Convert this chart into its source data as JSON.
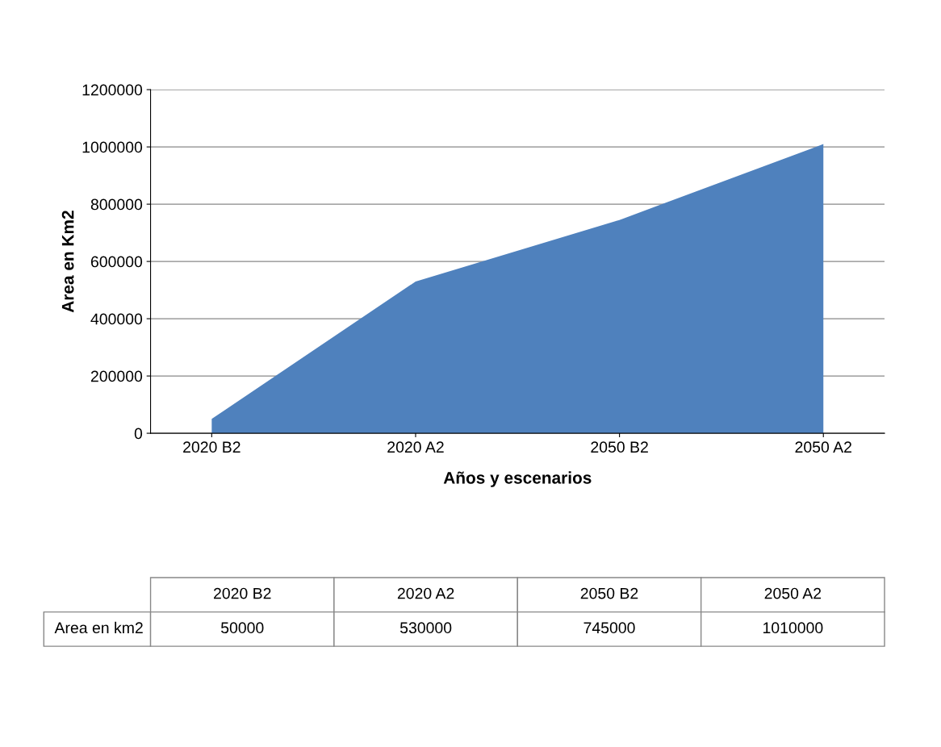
{
  "chart_data": {
    "type": "area",
    "xlabel": "Años y escenarios",
    "ylabel": "Area en Km2",
    "categories": [
      "2020 B2",
      "2020 A2",
      "2050 B2",
      "2050 A2"
    ],
    "series": [
      {
        "name": "Area en km2",
        "color": "#4f81bd",
        "values": [
          50000,
          530000,
          745000,
          1010000
        ]
      }
    ],
    "ylim": [
      0,
      1200000
    ],
    "yticks": [
      0,
      200000,
      400000,
      600000,
      800000,
      1000000,
      1200000
    ],
    "grid": "y",
    "data_labels": true
  }
}
